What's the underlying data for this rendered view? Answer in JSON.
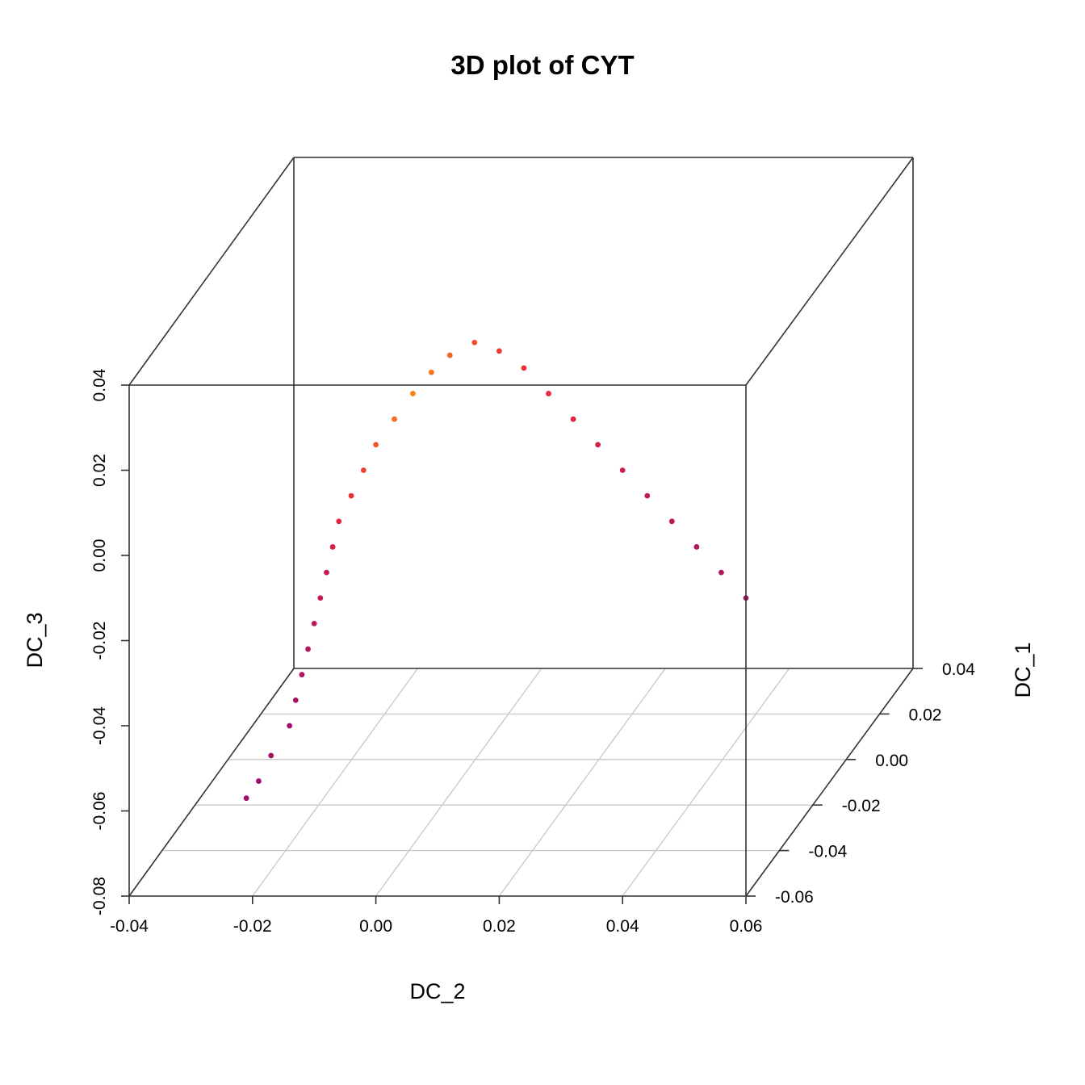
{
  "chart_data": {
    "type": "scatter",
    "title": "3D plot of CYT",
    "xlabel": "DC_2",
    "ylabel": "DC_1",
    "zlabel": "DC_3",
    "xlim": [
      -0.04,
      0.06
    ],
    "ylim": [
      -0.06,
      0.04
    ],
    "zlim": [
      -0.08,
      0.04
    ],
    "x_ticks": [
      "-0.04",
      "-0.02",
      "0.00",
      "0.02",
      "0.04",
      "0.06"
    ],
    "y_ticks": [
      "-0.06",
      "-0.04",
      "-0.02",
      "0.00",
      "0.02",
      "0.04"
    ],
    "z_ticks": [
      "-0.08",
      "-0.06",
      "-0.04",
      "-0.02",
      "0.00",
      "0.02",
      "0.04"
    ],
    "grid": true,
    "colors": {
      "low": "#8b0a77",
      "mid": "#e8253a",
      "high": "#ff8a12"
    },
    "points": [
      {
        "x": -0.021,
        "y": -0.06,
        "z": -0.057,
        "c": 0.1
      },
      {
        "x": -0.019,
        "y": -0.06,
        "z": -0.053,
        "c": 0.1
      },
      {
        "x": -0.017,
        "y": -0.06,
        "z": -0.047,
        "c": 0.15
      },
      {
        "x": -0.014,
        "y": -0.06,
        "z": -0.04,
        "c": 0.1
      },
      {
        "x": -0.013,
        "y": -0.06,
        "z": -0.034,
        "c": 0.15
      },
      {
        "x": -0.012,
        "y": -0.06,
        "z": -0.028,
        "c": 0.2
      },
      {
        "x": -0.011,
        "y": -0.06,
        "z": -0.022,
        "c": 0.2
      },
      {
        "x": -0.01,
        "y": -0.06,
        "z": -0.016,
        "c": 0.25
      },
      {
        "x": -0.009,
        "y": -0.06,
        "z": -0.01,
        "c": 0.3
      },
      {
        "x": -0.008,
        "y": -0.06,
        "z": -0.004,
        "c": 0.3
      },
      {
        "x": -0.007,
        "y": -0.06,
        "z": 0.002,
        "c": 0.4
      },
      {
        "x": -0.006,
        "y": -0.06,
        "z": 0.008,
        "c": 0.5
      },
      {
        "x": -0.004,
        "y": -0.06,
        "z": 0.014,
        "c": 0.55
      },
      {
        "x": -0.002,
        "y": -0.06,
        "z": 0.02,
        "c": 0.65
      },
      {
        "x": 0.0,
        "y": -0.06,
        "z": 0.026,
        "c": 0.75
      },
      {
        "x": 0.003,
        "y": -0.06,
        "z": 0.032,
        "c": 0.85
      },
      {
        "x": 0.006,
        "y": -0.06,
        "z": 0.038,
        "c": 0.95
      },
      {
        "x": 0.009,
        "y": -0.06,
        "z": 0.043,
        "c": 0.9
      },
      {
        "x": 0.012,
        "y": -0.06,
        "z": 0.047,
        "c": 0.8
      },
      {
        "x": 0.016,
        "y": -0.06,
        "z": 0.05,
        "c": 0.7
      },
      {
        "x": 0.02,
        "y": -0.06,
        "z": 0.048,
        "c": 0.6
      },
      {
        "x": 0.024,
        "y": -0.06,
        "z": 0.044,
        "c": 0.55
      },
      {
        "x": 0.028,
        "y": -0.06,
        "z": 0.038,
        "c": 0.5
      },
      {
        "x": 0.032,
        "y": -0.06,
        "z": 0.032,
        "c": 0.45
      },
      {
        "x": 0.036,
        "y": -0.06,
        "z": 0.026,
        "c": 0.4
      },
      {
        "x": 0.04,
        "y": -0.06,
        "z": 0.02,
        "c": 0.35
      },
      {
        "x": 0.044,
        "y": -0.06,
        "z": 0.014,
        "c": 0.3
      },
      {
        "x": 0.048,
        "y": -0.06,
        "z": 0.008,
        "c": 0.25
      },
      {
        "x": 0.052,
        "y": -0.06,
        "z": 0.002,
        "c": 0.2
      },
      {
        "x": 0.056,
        "y": -0.06,
        "z": -0.004,
        "c": 0.2
      },
      {
        "x": 0.06,
        "y": -0.06,
        "z": -0.01,
        "c": 0.15
      }
    ]
  }
}
